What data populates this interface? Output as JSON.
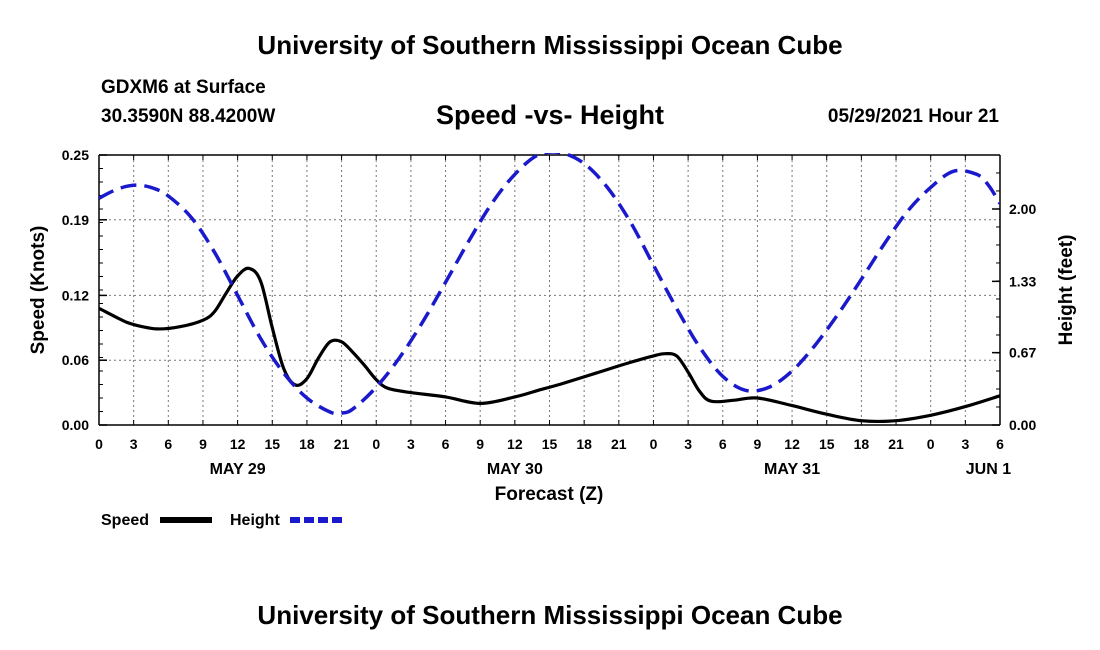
{
  "header": {
    "title_top": "University of Southern Mississippi Ocean Cube",
    "station": "GDXM6 at Surface",
    "coords": "30.3590N  88.4200W",
    "chart_title": "Speed -vs- Height",
    "datestamp": "05/29/2021 Hour 21",
    "title_bottom": "University of Southern Mississippi Ocean Cube"
  },
  "chart_data": {
    "type": "line",
    "title": "Speed -vs- Height",
    "xlabel": "Forecast (Z)",
    "ylabel_left": "Speed (Knots)",
    "ylabel_right": "Height (feet)",
    "x_range_hours": [
      0,
      78
    ],
    "x_tick_labels": [
      "0",
      "3",
      "6",
      "9",
      "12",
      "15",
      "18",
      "21",
      "0",
      "3",
      "6",
      "9",
      "12",
      "15",
      "18",
      "21",
      "0",
      "3",
      "6",
      "9",
      "12",
      "15",
      "18",
      "21",
      "0",
      "3",
      "6"
    ],
    "date_labels": [
      {
        "label": "MAY 29",
        "hour": 12
      },
      {
        "label": "MAY 30",
        "hour": 36
      },
      {
        "label": "MAY 31",
        "hour": 60
      },
      {
        "label": "JUN 1",
        "hour": 77
      }
    ],
    "ylim_left": [
      0,
      0.25
    ],
    "left_ticks": [
      "0.00",
      "0.06",
      "0.12",
      "0.19",
      "0.25"
    ],
    "ylim_right": [
      0,
      2.5
    ],
    "right_ticks": [
      "0.00",
      "0.67",
      "1.33",
      "2.00"
    ],
    "legend": {
      "speed_label": "Speed",
      "height_label": "Height",
      "placement": "bottom-left"
    },
    "colors": {
      "speed": "#000000",
      "height": "#1a1acc"
    },
    "series": [
      {
        "name": "Speed",
        "axis": "left",
        "style": "solid",
        "x": [
          0,
          2,
          3,
          5,
          7,
          9,
          10,
          11,
          12,
          13,
          14,
          15,
          16,
          17,
          18,
          19,
          20,
          21,
          22,
          23,
          24,
          25,
          27,
          30,
          33,
          36,
          38,
          40,
          43,
          46,
          48,
          49,
          50,
          51,
          52,
          53,
          55,
          57,
          60,
          63,
          66,
          69,
          72,
          75,
          78
        ],
        "values": [
          0.108,
          0.097,
          0.093,
          0.089,
          0.091,
          0.097,
          0.105,
          0.122,
          0.138,
          0.145,
          0.133,
          0.09,
          0.052,
          0.037,
          0.043,
          0.062,
          0.077,
          0.077,
          0.067,
          0.055,
          0.042,
          0.034,
          0.03,
          0.026,
          0.02,
          0.026,
          0.032,
          0.038,
          0.048,
          0.058,
          0.064,
          0.066,
          0.064,
          0.049,
          0.031,
          0.022,
          0.023,
          0.025,
          0.018,
          0.01,
          0.004,
          0.004,
          0.009,
          0.017,
          0.027
        ]
      },
      {
        "name": "Height",
        "axis": "right",
        "style": "dashed",
        "x": [
          0,
          1.5,
          3,
          4.5,
          6,
          8,
          10,
          12,
          14,
          16,
          18,
          20,
          21,
          22,
          24,
          26,
          28,
          30,
          32,
          34,
          36,
          38,
          40,
          42,
          44,
          46,
          48,
          50,
          52,
          54,
          56,
          58,
          60,
          62,
          64,
          66,
          68,
          70,
          72,
          74,
          76,
          77,
          78
        ],
        "values": [
          2.1,
          2.18,
          2.22,
          2.2,
          2.12,
          1.92,
          1.6,
          1.2,
          0.8,
          0.48,
          0.25,
          0.12,
          0.11,
          0.15,
          0.35,
          0.62,
          0.95,
          1.32,
          1.7,
          2.05,
          2.32,
          2.5,
          2.52,
          2.42,
          2.2,
          1.88,
          1.48,
          1.08,
          0.72,
          0.45,
          0.32,
          0.35,
          0.5,
          0.74,
          1.03,
          1.35,
          1.68,
          1.98,
          2.2,
          2.35,
          2.32,
          2.22,
          2.05
        ]
      }
    ]
  }
}
